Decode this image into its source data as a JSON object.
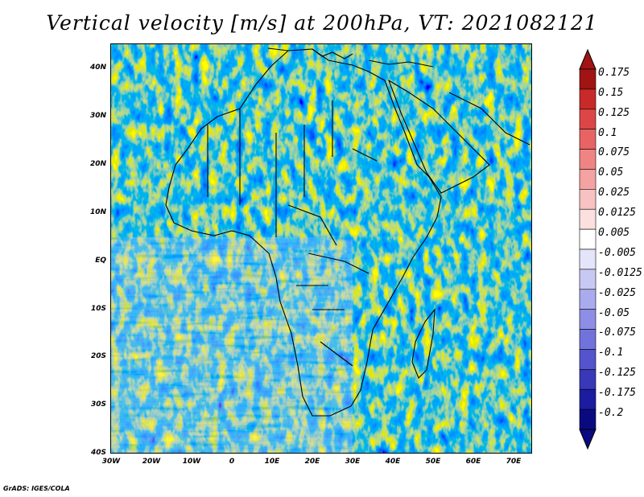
{
  "title": "Vertical velocity [m/s] at 200hPa, VT: 2021082121",
  "footer": "GrADS: IGES/COLA",
  "map": {
    "lat_ticks": [
      "40N",
      "30N",
      "20N",
      "10N",
      "EQ",
      "10S",
      "20S",
      "30S",
      "40S"
    ],
    "lon_ticks": [
      "30W",
      "20W",
      "10W",
      "0",
      "10E",
      "20E",
      "30E",
      "40E",
      "50E",
      "60E",
      "70E"
    ],
    "lon_range": [
      -30,
      75
    ],
    "lat_range": [
      -40,
      45
    ],
    "field": "vertical velocity"
  },
  "colorbar": {
    "levels": [
      "0.175",
      "0.15",
      "0.125",
      "0.1",
      "0.075",
      "0.05",
      "0.025",
      "0.0125",
      "0.005",
      "-0.005",
      "-0.0125",
      "-0.025",
      "-0.05",
      "-0.075",
      "-0.1",
      "-0.125",
      "-0.175",
      "-0.2"
    ],
    "colors": [
      "#a01414",
      "#c82a2a",
      "#dc4646",
      "#e86464",
      "#f08484",
      "#f4a2a2",
      "#f8c2c2",
      "#fce0e0",
      "#ffffff",
      "#e4e4fa",
      "#c8c8f4",
      "#aaaaee",
      "#8e8ee6",
      "#7272dc",
      "#5454cc",
      "#3838b8",
      "#1c1ca0",
      "#0a0a80"
    ]
  }
}
